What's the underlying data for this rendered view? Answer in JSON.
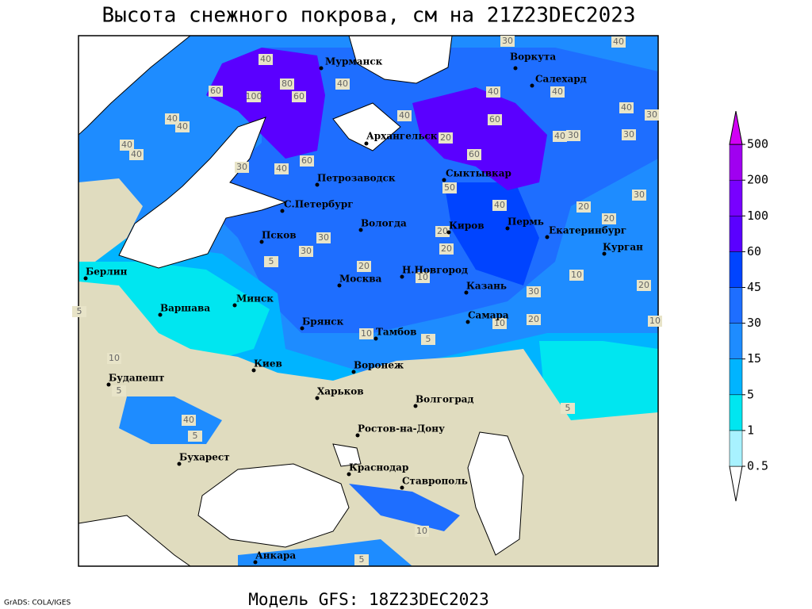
{
  "header": {
    "title": "Высота снежного покрова, см на 21Z23DEC2023"
  },
  "footer": {
    "model": "Модель GFS: 18Z23DEC2023",
    "credit": "GrADS: COLA/IGES"
  },
  "cities": [
    "Мурманск",
    "Воркута",
    "Салехард",
    "Архангельск",
    "Сыктывкар",
    "Петрозаводск",
    "С.Петербург",
    "Вологда",
    "Киров",
    "Пермь",
    "Екатеринбург",
    "Курган",
    "Псков",
    "Берлин",
    "Москва",
    "Н.Новгород",
    "Казань",
    "Минск",
    "Варшава",
    "Самара",
    "Брянск",
    "Тамбов",
    "Воронеж",
    "Киев",
    "Харьков",
    "Волгоград",
    "Будапешт",
    "Ростов-на-Дону",
    "Бухарест",
    "Краснодар",
    "Ставрополь",
    "Анкара"
  ],
  "contour_labels": [
    40,
    40,
    60,
    100,
    80,
    60,
    40,
    40,
    40,
    40,
    30,
    40,
    60,
    40,
    40,
    20,
    60,
    60,
    40,
    30,
    40,
    40,
    40,
    30,
    30,
    30,
    20,
    20,
    50,
    40,
    20,
    20,
    30,
    30,
    5,
    20,
    10,
    10,
    20,
    30,
    10,
    20,
    10,
    10,
    5,
    10,
    5,
    40,
    5,
    5,
    10,
    5,
    5,
    30
  ],
  "legend": {
    "levels": [
      0.5,
      1,
      5,
      15,
      30,
      45,
      60,
      100,
      200,
      500
    ],
    "colors": [
      "#ffffff",
      "#a8f2ff",
      "#00e6f0",
      "#00b4ff",
      "#1e8cff",
      "#1e6eff",
      "#0044ff",
      "#5a00ff",
      "#7800ff",
      "#a000f0",
      "#d200f5"
    ]
  }
}
